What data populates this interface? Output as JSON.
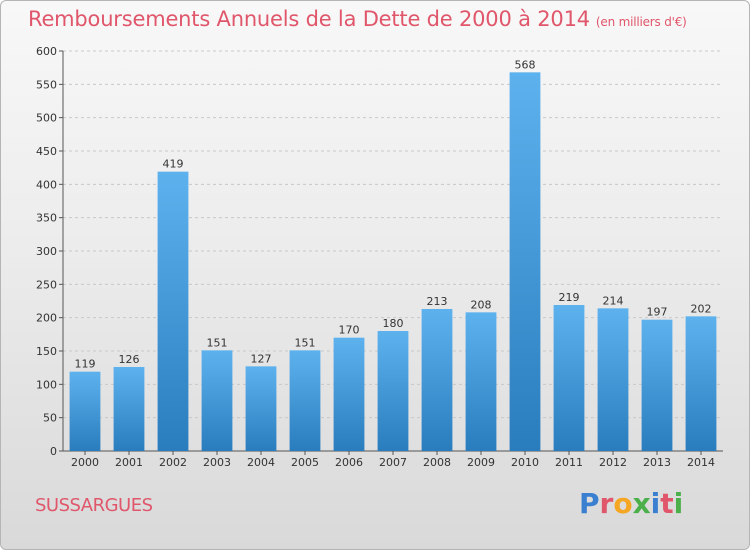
{
  "title": "Remboursements Annuels de la Dette de 2000 à 2014",
  "subtitle": "(en milliers d'€)",
  "commune": "SUSSARGUES",
  "logo": {
    "text": "Proxiti",
    "colors": [
      "#3a7fd0",
      "#e0566b",
      "#f5a623",
      "#4bb04a",
      "#3a7fd0",
      "#e0566b",
      "#4bb04a"
    ]
  },
  "colors": {
    "bar_light": "#5db2ee",
    "bar_dark": "#2a7dbd",
    "title": "#e0566b"
  },
  "chart_data": {
    "type": "bar",
    "title": "Remboursements Annuels de la Dette de 2000 à 2014",
    "ylabel": "en milliers d'€",
    "xlabel": "",
    "ylim": [
      0,
      600
    ],
    "yticks": [
      0,
      50,
      100,
      150,
      200,
      250,
      300,
      350,
      400,
      450,
      500,
      550,
      600
    ],
    "grid": true,
    "categories": [
      "2000",
      "2001",
      "2002",
      "2003",
      "2004",
      "2005",
      "2006",
      "2007",
      "2008",
      "2009",
      "2010",
      "2011",
      "2012",
      "2013",
      "2014"
    ],
    "values": [
      119,
      126,
      419,
      151,
      127,
      151,
      170,
      180,
      213,
      208,
      568,
      219,
      214,
      197,
      202
    ]
  }
}
